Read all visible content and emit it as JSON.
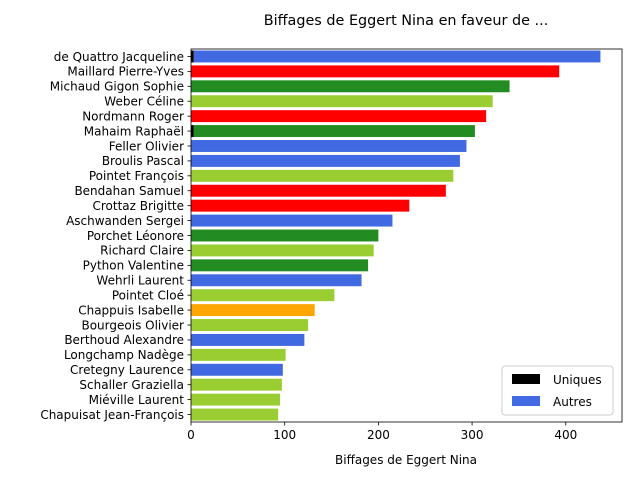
{
  "chart_data": {
    "type": "bar",
    "orientation": "horizontal",
    "title": "Biffages de Eggert Nina en faveur de ...",
    "xlabel": "Biffages de Eggert Nina",
    "ylabel": "",
    "xlim": [
      0,
      460
    ],
    "xticks": [
      0,
      100,
      200,
      300,
      400
    ],
    "grid": false,
    "legend_position": "lower-right",
    "categories": [
      "de Quattro Jacqueline",
      "Maillard Pierre-Yves",
      "Michaud Gigon Sophie",
      "Weber Céline",
      "Nordmann Roger",
      "Mahaim Raphaël",
      "Feller Olivier",
      "Broulis Pascal",
      "Pointet François",
      "Bendahan Samuel",
      "Crottaz Brigitte",
      "Aschwanden Sergei",
      "Porchet Léonore",
      "Richard Claire",
      "Python Valentine",
      "Wehrli Laurent",
      "Pointet Cloé",
      "Chappuis Isabelle",
      "Bourgeois Olivier",
      "Berthoud Alexandre",
      "Longchamp Nadège",
      "Cretegny Laurence",
      "Schaller Graziella",
      "Miéville Laurent",
      "Chapuisat Jean-François"
    ],
    "series": [
      {
        "name": "Uniques",
        "color": "#000000",
        "values": [
          3,
          0,
          0,
          0,
          0,
          3,
          0,
          0,
          0,
          0,
          0,
          0,
          0,
          0,
          0,
          0,
          0,
          0,
          0,
          0,
          0,
          0,
          0,
          0,
          0
        ]
      },
      {
        "name": "Autres",
        "color": "#4169e1",
        "values": [
          434,
          393,
          340,
          322,
          315,
          300,
          294,
          287,
          280,
          272,
          233,
          215,
          200,
          195,
          189,
          182,
          153,
          132,
          125,
          121,
          101,
          98,
          97,
          95,
          93
        ]
      }
    ],
    "bar_colors": [
      "#4169e1",
      "#ff0000",
      "#228b22",
      "#9acd32",
      "#ff0000",
      "#228b22",
      "#4169e1",
      "#4169e1",
      "#9acd32",
      "#ff0000",
      "#ff0000",
      "#4169e1",
      "#228b22",
      "#9acd32",
      "#228b22",
      "#4169e1",
      "#9acd32",
      "#ffa500",
      "#9acd32",
      "#4169e1",
      "#9acd32",
      "#4169e1",
      "#9acd32",
      "#9acd32",
      "#9acd32"
    ]
  }
}
